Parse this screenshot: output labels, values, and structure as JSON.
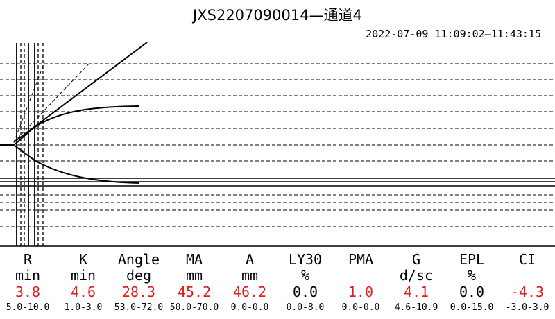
{
  "title": "JXS2207090014—通道4",
  "datetime": "2022-07-09 11:09:02—11:43:15",
  "colors": {
    "out_of_range": "#e0201b",
    "in_range": "#000000",
    "lines": "#000000"
  },
  "chart_data": {
    "type": "line",
    "params": [
      {
        "name": "R",
        "unit": "min",
        "value": "3.8",
        "range": "5.0-10.0",
        "out_of_range": true
      },
      {
        "name": "K",
        "unit": "min",
        "value": "4.6",
        "range": "1.0-3.0",
        "out_of_range": true
      },
      {
        "name": "Angle",
        "unit": "deg",
        "value": "28.3",
        "range": "53.0-72.0",
        "out_of_range": true
      },
      {
        "name": "MA",
        "unit": "mm",
        "value": "45.2",
        "range": "50.0-70.0",
        "out_of_range": true
      },
      {
        "name": "A",
        "unit": "mm",
        "value": "46.2",
        "range": "0.0-0.0",
        "out_of_range": true
      },
      {
        "name": "LY30",
        "unit": "%",
        "value": "0.0",
        "range": "0.0-8.0",
        "out_of_range": false
      },
      {
        "name": "PMA",
        "unit": "",
        "value": "1.0",
        "range": "0.0-0.0",
        "out_of_range": true
      },
      {
        "name": "G",
        "unit": "d/sc",
        "value": "4.1",
        "range": "4.6-10.9",
        "out_of_range": true
      },
      {
        "name": "EPL",
        "unit": "%",
        "value": "0.0",
        "range": "0.0-15.0",
        "out_of_range": false
      },
      {
        "name": "CI",
        "unit": "",
        "value": "-4.3",
        "range": "-3.0-3.0",
        "out_of_range": true
      }
    ],
    "grid": true,
    "legend": "none"
  }
}
